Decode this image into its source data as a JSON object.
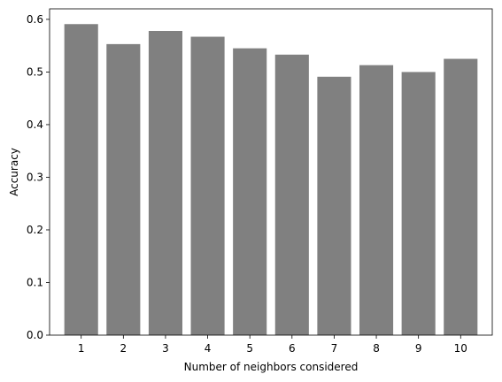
{
  "chart_data": {
    "type": "bar",
    "categories": [
      "1",
      "2",
      "3",
      "4",
      "5",
      "6",
      "7",
      "8",
      "9",
      "10"
    ],
    "values": [
      0.591,
      0.553,
      0.578,
      0.567,
      0.545,
      0.533,
      0.491,
      0.513,
      0.5,
      0.525
    ],
    "xlabel": "Number of neighbors considered",
    "ylabel": "Accuracy",
    "ylim": [
      0,
      0.62
    ],
    "yticks": [
      "0.0",
      "0.1",
      "0.2",
      "0.3",
      "0.4",
      "0.5",
      "0.6"
    ],
    "bar_color": "#808080",
    "grid": false
  }
}
